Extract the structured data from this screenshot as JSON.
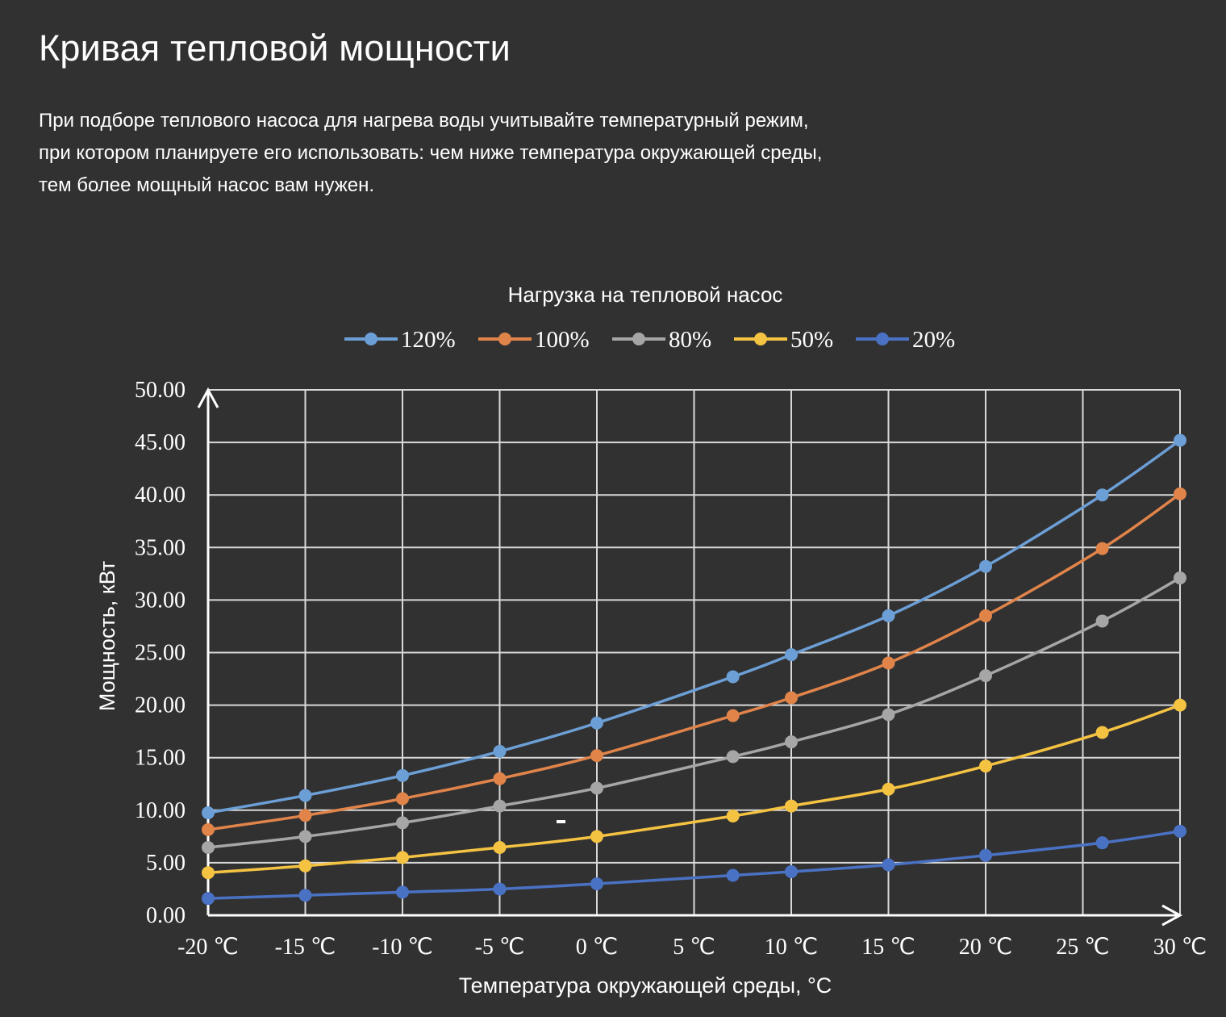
{
  "page": {
    "title": "Кривая тепловой мощности",
    "description": [
      "При подборе теплового насоса для нагрева воды учитывайте температурный режим,",
      "при котором планируете его использовать: чем ниже температура окружающей среды,",
      "тем более мощный насос вам нужен."
    ]
  },
  "chart_data": {
    "type": "line",
    "title": "Нагрузка на тепловой насос",
    "xlabel": "Температура окружающей среды, °C",
    "ylabel": "Мощность, кВт",
    "xlim": [
      -20,
      30
    ],
    "ylim": [
      0,
      50
    ],
    "x_ticks": [
      -20,
      -15,
      -10,
      -5,
      0,
      5,
      10,
      15,
      20,
      25,
      30
    ],
    "x_tick_labels": [
      "-20 ℃",
      "-15 ℃",
      "-10 ℃",
      "-5 ℃",
      "0 ℃",
      "5 ℃",
      "10 ℃",
      "15 ℃",
      "20 ℃",
      "25 ℃",
      "30 ℃"
    ],
    "y_ticks": [
      0,
      5,
      10,
      15,
      20,
      25,
      30,
      35,
      40,
      45,
      50
    ],
    "y_tick_labels": [
      "0.00",
      "5.00",
      "10.00",
      "15.00",
      "20.00",
      "25.00",
      "30.00",
      "35.00",
      "40.00",
      "45.00",
      "50.00"
    ],
    "grid": true,
    "legend_position": "top",
    "x": [
      -20,
      -15,
      -10,
      -5,
      0,
      7,
      10,
      15,
      20,
      26,
      30
    ],
    "series": [
      {
        "name": "120%",
        "color": "#6b9fd6",
        "values": [
          9.75,
          11.4,
          13.3,
          15.6,
          18.3,
          22.7,
          24.8,
          28.5,
          33.2,
          40.0,
          45.2
        ]
      },
      {
        "name": "100%",
        "color": "#e0844a",
        "values": [
          8.15,
          9.5,
          11.1,
          13.0,
          15.2,
          19.0,
          20.7,
          24.0,
          28.5,
          34.9,
          40.1
        ]
      },
      {
        "name": "80%",
        "color": "#a6a6a6",
        "values": [
          6.45,
          7.5,
          8.8,
          10.4,
          12.1,
          15.1,
          16.5,
          19.1,
          22.8,
          28.0,
          32.1
        ]
      },
      {
        "name": "50%",
        "color": "#f5c342",
        "values": [
          4.05,
          4.7,
          5.5,
          6.45,
          7.5,
          9.45,
          10.4,
          12.0,
          14.2,
          17.4,
          20.0
        ]
      },
      {
        "name": "20%",
        "color": "#4a72c4",
        "values": [
          1.6,
          1.9,
          2.2,
          2.5,
          3.0,
          3.8,
          4.15,
          4.8,
          5.7,
          6.9,
          8.0
        ]
      }
    ]
  }
}
